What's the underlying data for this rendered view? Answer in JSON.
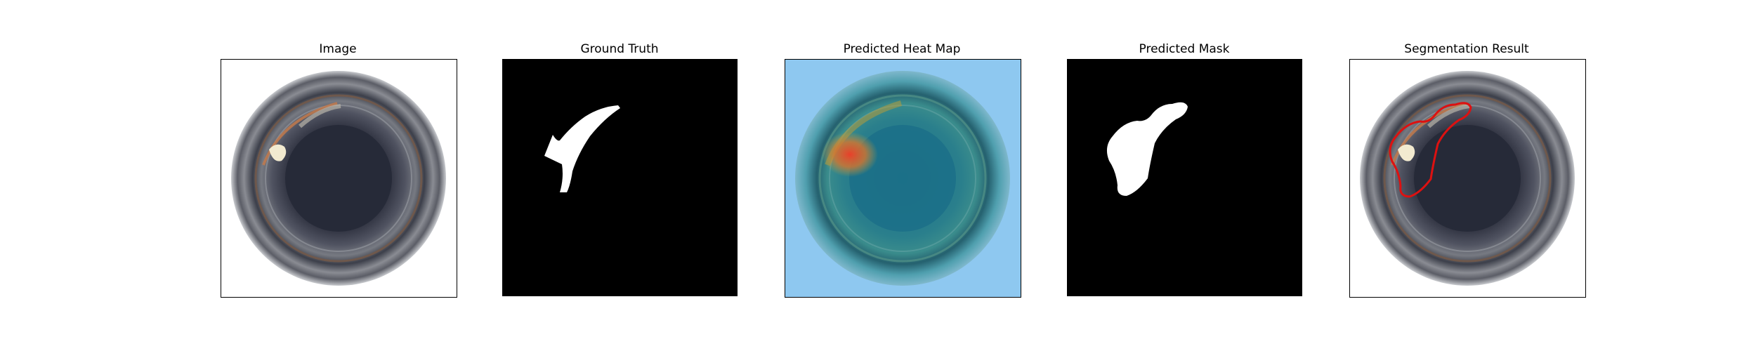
{
  "figure": {
    "panels": [
      {
        "title": "Image",
        "kind": "photo"
      },
      {
        "title": "Ground Truth",
        "kind": "mask"
      },
      {
        "title": "Predicted Heat Map",
        "kind": "heatmap"
      },
      {
        "title": "Predicted Mask",
        "kind": "mask"
      },
      {
        "title": "Segmentation Result",
        "kind": "overlay"
      }
    ],
    "colors": {
      "mask_background": "#000000",
      "mask_foreground": "#ffffff",
      "contour": "#dd1111",
      "heatmap_low": "#8ec8f0",
      "heatmap_high": "#e8402a"
    }
  }
}
